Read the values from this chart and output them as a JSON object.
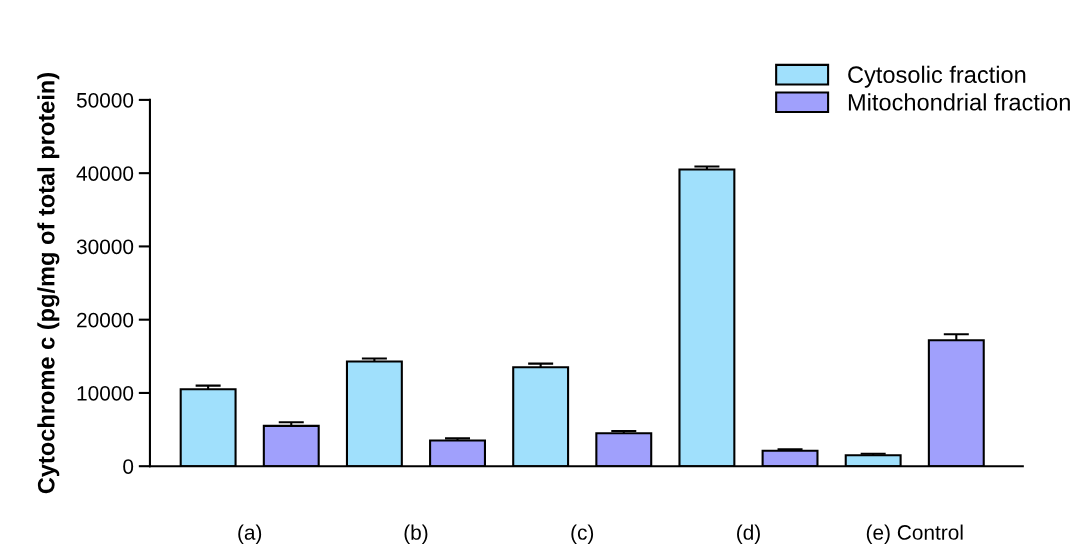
{
  "chart_data": {
    "type": "bar",
    "ylabel": "Cytochrome c (pg/mg of total protein)",
    "categories": [
      "(a)",
      "(b)",
      "(c)",
      "(d)",
      "(e) Control"
    ],
    "series": [
      {
        "name": "Cytosolic fraction",
        "color": "#a0e0fc",
        "values": [
          10500,
          14300,
          13500,
          40500,
          1500
        ],
        "errors": [
          500,
          400,
          500,
          400,
          200
        ]
      },
      {
        "name": "Mitochondrial fraction",
        "color": "#a0a0fc",
        "values": [
          5500,
          3500,
          4500,
          2100,
          17200
        ],
        "errors": [
          500,
          300,
          300,
          200,
          800
        ]
      }
    ],
    "ylim": [
      0,
      50000
    ],
    "yticks": [
      0,
      10000,
      20000,
      30000,
      40000,
      50000
    ],
    "grid": false,
    "legend": "top right"
  }
}
